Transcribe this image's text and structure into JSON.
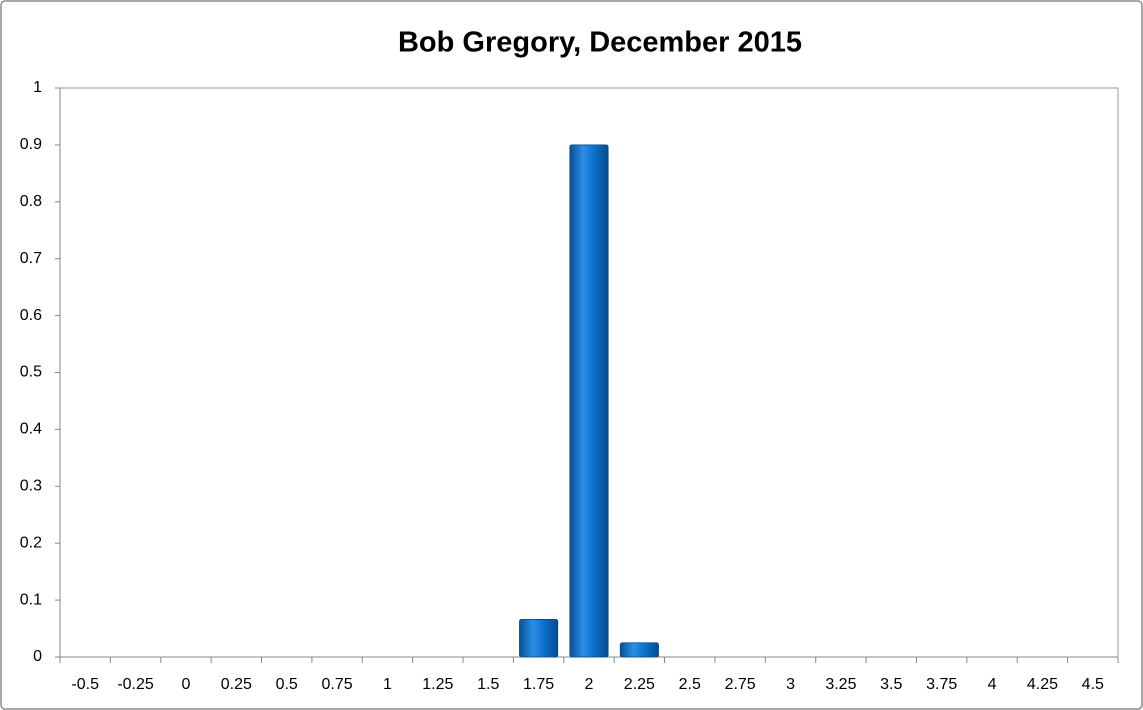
{
  "chart_data": {
    "type": "bar",
    "title": "Bob Gregory, December 2015",
    "categories": [
      "-0.5",
      "-0.25",
      "0",
      "0.25",
      "0.5",
      "0.75",
      "1",
      "1.25",
      "1.5",
      "1.75",
      "2",
      "2.25",
      "2.5",
      "2.75",
      "3",
      "3.25",
      "3.5",
      "3.75",
      "4",
      "4.25",
      "4.5"
    ],
    "values": [
      0,
      0,
      0,
      0,
      0,
      0,
      0,
      0,
      0,
      0.066,
      0.9,
      0.025,
      0,
      0,
      0,
      0,
      0,
      0,
      0,
      0,
      0
    ],
    "color": "#0a6fc9",
    "ylim": [
      0,
      1
    ],
    "yticks": [
      0,
      0.1,
      0.2,
      0.3,
      0.4,
      0.5,
      0.6,
      0.7,
      0.8,
      0.9,
      1
    ],
    "grid": false
  }
}
